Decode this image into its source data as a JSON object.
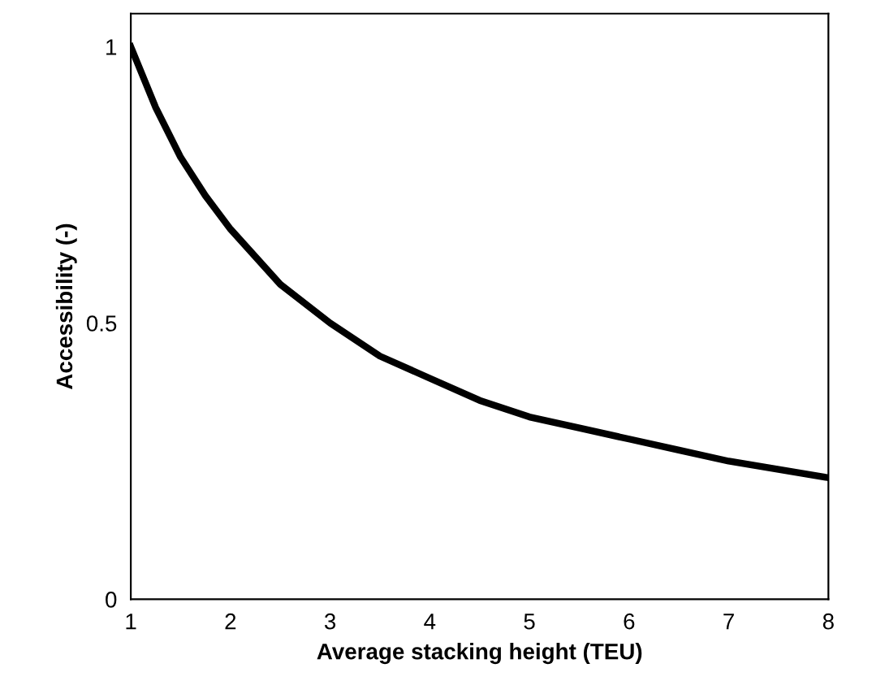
{
  "chart_data": {
    "type": "line",
    "xlabel": "Average stacking height (TEU)",
    "ylabel": "Accessibility (-)",
    "x": [
      1,
      1.25,
      1.5,
      1.75,
      2,
      2.5,
      3,
      3.5,
      4,
      4.5,
      5,
      5.5,
      6,
      6.5,
      7,
      7.5,
      8
    ],
    "series": [
      {
        "color": "#000000",
        "values": [
          1.0,
          0.89,
          0.8,
          0.73,
          0.67,
          0.57,
          0.5,
          0.44,
          0.4,
          0.36,
          0.33,
          0.31,
          0.29,
          0.27,
          0.25,
          0.235,
          0.22
        ]
      }
    ],
    "xlim": [
      1,
      8
    ],
    "xticks": [
      1,
      2,
      3,
      4,
      5,
      6,
      7,
      8
    ],
    "ylim": [
      0,
      1.06
    ],
    "yticks": [
      0,
      0.5,
      1
    ],
    "grid": false,
    "legend": false,
    "marker": "none",
    "line_style": "solid"
  }
}
